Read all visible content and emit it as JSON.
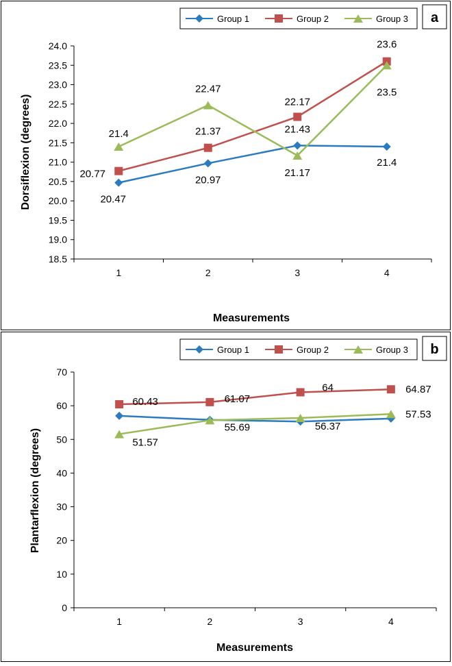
{
  "chart_data": [
    {
      "type": "line",
      "panel_label": "a",
      "xlabel": "Measurements",
      "ylabel": "Dorsiflexion (degrees)",
      "categories": [
        "1",
        "2",
        "3",
        "4"
      ],
      "ylim": [
        18.5,
        24.0
      ],
      "yticks": [
        "18.5",
        "19.0",
        "19.5",
        "20.0",
        "20.5",
        "21.0",
        "21.5",
        "22.0",
        "22.5",
        "23.0",
        "23.5",
        "24.0"
      ],
      "grid": false,
      "legend": "top",
      "series": [
        {
          "name": "Group 1",
          "color": "#2b7bc0",
          "marker": "diamond",
          "values": [
            20.47,
            20.97,
            21.43,
            21.4
          ],
          "labels": [
            "20.47",
            "20.97",
            "21.43",
            "21.4"
          ]
        },
        {
          "name": "Group 2",
          "color": "#c0504d",
          "marker": "square",
          "values": [
            20.77,
            21.37,
            22.17,
            23.6
          ],
          "labels": [
            "20.77",
            "21.37",
            "22.17",
            "23.6"
          ]
        },
        {
          "name": "Group 3",
          "color": "#9bbb59",
          "marker": "triangle",
          "values": [
            21.4,
            22.47,
            21.17,
            23.5
          ],
          "labels": [
            "21.4",
            "22.47",
            "21.17",
            "23.5"
          ]
        }
      ]
    },
    {
      "type": "line",
      "panel_label": "b",
      "xlabel": "Measurements",
      "ylabel": "Plantarflexion (degrees)",
      "categories": [
        "1",
        "2",
        "3",
        "4"
      ],
      "ylim": [
        0,
        70
      ],
      "yticks": [
        "0",
        "10",
        "20",
        "30",
        "40",
        "50",
        "60",
        "70"
      ],
      "grid": false,
      "legend": "top",
      "series": [
        {
          "name": "Group 1",
          "color": "#2b7bc0",
          "marker": "diamond",
          "values": [
            57.0,
            55.8,
            55.3,
            56.2
          ],
          "labels": [
            "",
            "",
            "",
            ""
          ]
        },
        {
          "name": "Group 2",
          "color": "#c0504d",
          "marker": "square",
          "values": [
            60.43,
            61.07,
            64,
            64.87
          ],
          "labels": [
            "60.43",
            "61.07",
            "64",
            "64.87"
          ]
        },
        {
          "name": "Group 3",
          "color": "#9bbb59",
          "marker": "triangle",
          "values": [
            51.57,
            55.69,
            56.37,
            57.53
          ],
          "labels": [
            "51.57",
            "55.69",
            "56.37",
            "57.53"
          ]
        }
      ]
    }
  ]
}
